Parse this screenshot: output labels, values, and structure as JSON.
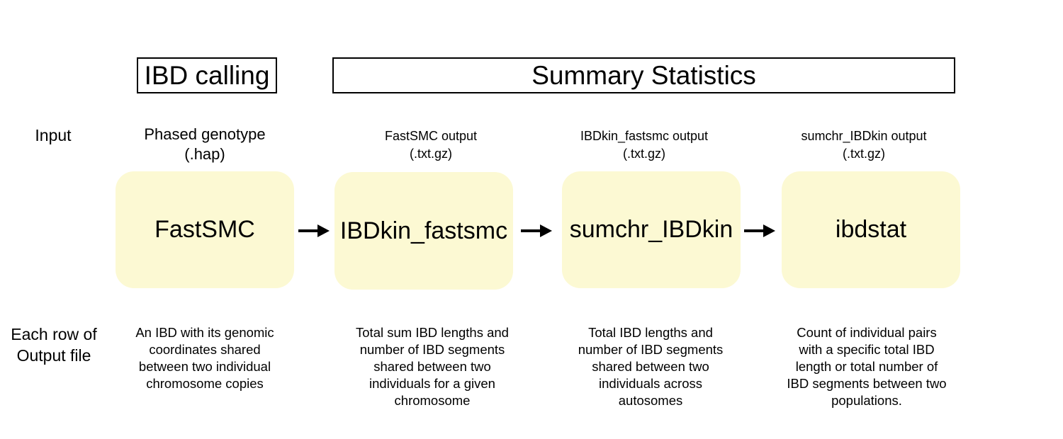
{
  "headers": {
    "ibd_calling": "IBD calling",
    "summary_statistics": "Summary Statistics"
  },
  "row_labels": {
    "input": "Input",
    "output_line1": "Each row of",
    "output_line2": "Output file"
  },
  "colors": {
    "box_fill": "#fcf9d3",
    "border": "#000000",
    "arrow": "#000000"
  },
  "icons": {
    "arrow": "right-arrow-icon"
  },
  "steps": [
    {
      "input_line1": "Phased genotype",
      "input_line2": "(.hap)",
      "tool": "FastSMC",
      "desc": [
        "An IBD with its genomic",
        "coordinates shared",
        "between two individual",
        "chromosome copies"
      ]
    },
    {
      "input_line1": "FastSMC output",
      "input_line2": "(.txt.gz)",
      "tool": "IBDkin_fastsmc",
      "desc": [
        "Total sum IBD lengths and",
        "number of IBD segments",
        "shared between two",
        "individuals for a given",
        "chromosome"
      ]
    },
    {
      "input_line1": "IBDkin_fastsmc output",
      "input_line2": "(.txt.gz)",
      "tool": "sumchr_IBDkin",
      "desc": [
        "Total IBD lengths and",
        "number of IBD segments",
        "shared between two",
        "individuals across",
        "autosomes"
      ]
    },
    {
      "input_line1": "sumchr_IBDkin output",
      "input_line2": "(.txt.gz)",
      "tool": "ibdstat",
      "desc": [
        "Count of individual pairs",
        "with a specific total IBD",
        "length or total number of",
        "IBD segments between two",
        "populations."
      ]
    }
  ]
}
